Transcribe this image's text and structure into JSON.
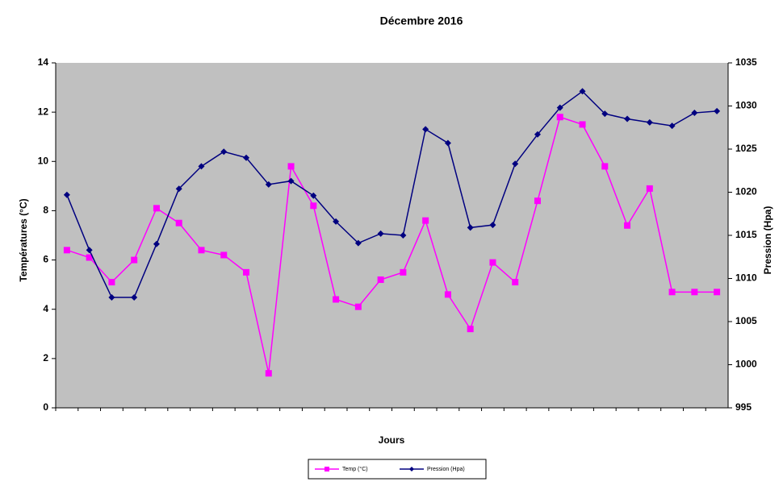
{
  "chart_data": {
    "type": "line",
    "title": "Décembre 2016",
    "x_label": "Jours",
    "y_label": "Températures (°C)",
    "y2_label": "Pression (Hpa)",
    "categories": [
      null,
      null,
      null,
      null,
      null,
      null,
      null,
      null,
      null,
      null,
      null,
      null,
      null,
      null,
      null,
      null,
      null,
      null,
      null,
      null,
      null,
      null,
      null,
      null,
      null,
      null,
      null,
      null,
      null,
      null
    ],
    "ylim": [
      0,
      14
    ],
    "yticks": [
      0,
      2,
      4,
      6,
      8,
      10,
      12,
      14
    ],
    "y2lim": [
      995,
      1035
    ],
    "y2ticks": [
      995,
      1000,
      1005,
      1010,
      1015,
      1020,
      1025,
      1030,
      1035
    ],
    "background": "#c0c0c0",
    "legend": "bottom",
    "series": [
      {
        "name": "Temp (°C)",
        "color": "#ff00ff",
        "marker": "square",
        "values": [
          6.4,
          6.1,
          5.1,
          6.0,
          8.1,
          7.5,
          6.4,
          6.2,
          5.5,
          1.4,
          9.8,
          8.2,
          4.4,
          4.1,
          5.2,
          5.5,
          7.6,
          4.6,
          3.2,
          5.9,
          5.1,
          8.4,
          11.8,
          11.5,
          9.8,
          7.4,
          8.9,
          4.7,
          4.7,
          4.7
        ]
      },
      {
        "name": "Pression (Hpa)",
        "color": "#000080",
        "marker": "diamond",
        "axis": "y2",
        "values": [
          1019.7,
          1013.3,
          1007.8,
          1007.8,
          1014.0,
          1020.4,
          1023.0,
          1024.7,
          1024.0,
          1020.9,
          1021.3,
          1019.6,
          1016.6,
          1014.1,
          1015.2,
          1015.0,
          1027.3,
          1025.7,
          1015.9,
          1016.2,
          1023.3,
          1026.7,
          1029.8,
          1031.7,
          1029.1,
          1028.5,
          1028.1,
          1027.7,
          1029.2,
          1029.4
        ]
      }
    ]
  }
}
